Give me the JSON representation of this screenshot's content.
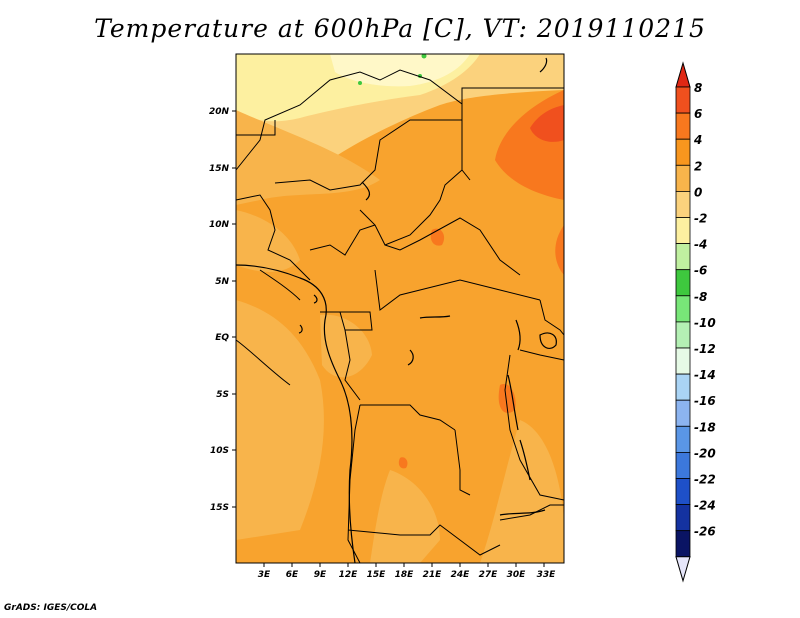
{
  "title": "Temperature at 600hPa [C], VT: 2019110215",
  "credit": "GrADS: IGES/COLA",
  "map": {
    "lon_labels": [
      "3E",
      "6E",
      "9E",
      "12E",
      "15E",
      "18E",
      "21E",
      "24E",
      "27E",
      "30E",
      "33E"
    ],
    "lat_labels": [
      "20N",
      "15N",
      "10N",
      "5N",
      "EQ",
      "5S",
      "10S",
      "15S"
    ]
  },
  "colorbar": {
    "levels": [
      "8",
      "6",
      "4",
      "2",
      "0",
      "-2",
      "-4",
      "-6",
      "-8",
      "-10",
      "-12",
      "-14",
      "-16",
      "-18",
      "-20",
      "-22",
      "-24",
      "-26"
    ],
    "colors": [
      "#f0501e",
      "#f8781e",
      "#f8961e",
      "#f8b44b",
      "#fbd27d",
      "#fdf0a0",
      "#c0f0a0",
      "#3ec83e",
      "#78e678",
      "#b4f0b4",
      "#e6fae6",
      "#aad4f5",
      "#8cb4f0",
      "#5a96e6",
      "#3c78dc",
      "#1e50c8",
      "#1432a0",
      "#0a1464"
    ],
    "top_color": "#e02814",
    "bottom_color": "#e6e6fa"
  }
}
